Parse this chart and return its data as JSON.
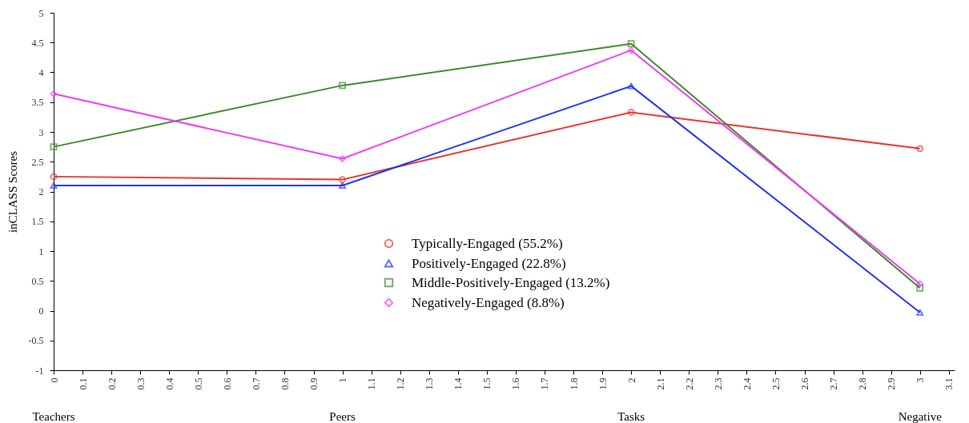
{
  "chart_data": {
    "type": "line",
    "ylabel": "inCLASS Scores",
    "x": [
      0,
      1,
      2,
      3
    ],
    "series": [
      {
        "name": "Typically-Engaged (55.2%)",
        "color": "#e8352b",
        "marker": "circle",
        "values": [
          2.25,
          2.2,
          3.33,
          2.72
        ]
      },
      {
        "name": "Positively-Engaged (22.8%)",
        "color": "#1f35f0",
        "marker": "triangle",
        "values": [
          2.1,
          2.1,
          3.77,
          -0.03
        ]
      },
      {
        "name": "Middle-Positively-Engaged (13.2%)",
        "color": "#3b8a2a",
        "marker": "square",
        "values": [
          2.75,
          3.78,
          4.48,
          0.38
        ]
      },
      {
        "name": "Negatively-Engaged (8.8%)",
        "color": "#ee3df2",
        "marker": "diamond",
        "values": [
          3.64,
          2.55,
          4.37,
          0.45
        ]
      }
    ],
    "annotations": [
      "Teachers",
      "Peers",
      "Tasks",
      "Negative"
    ],
    "xlim": [
      0,
      3.12
    ],
    "ylim": [
      -1,
      5
    ],
    "xticks": [
      0,
      0.1,
      0.2,
      0.3,
      0.4,
      0.5,
      0.6,
      0.7,
      0.8,
      0.9,
      1,
      1.1,
      1.2,
      1.3,
      1.4,
      1.5,
      1.6,
      1.7,
      1.8,
      1.9,
      2,
      2.1,
      2.2,
      2.3,
      2.4,
      2.5,
      2.6,
      2.7,
      2.8,
      2.9,
      3,
      3.1
    ],
    "yticks": [
      -1,
      -0.5,
      0,
      0.5,
      1,
      1.5,
      2,
      2.5,
      3,
      3.5,
      4,
      4.5,
      5
    ],
    "grid": false,
    "legend": "bottom",
    "line_style": "solid"
  }
}
